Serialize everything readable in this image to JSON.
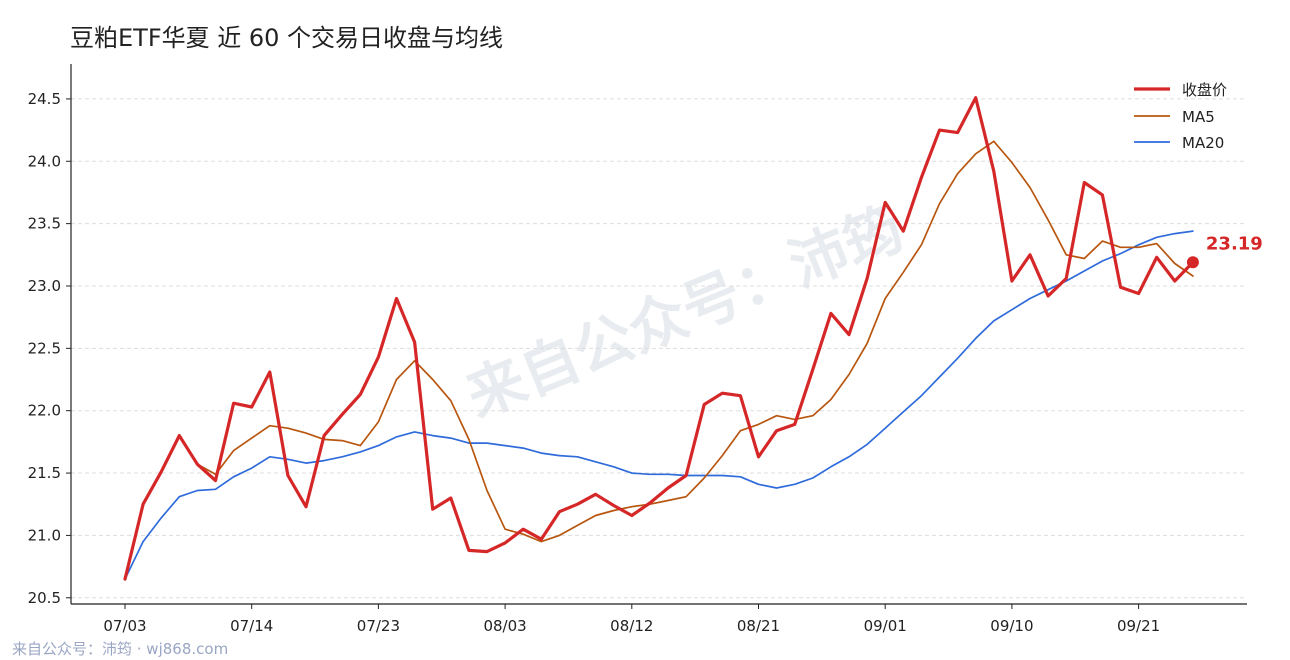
{
  "title": "豆粕ETF华夏 近 60 个交易日收盘与均线",
  "footer": "来自公众号：沛筠 · wj868.com",
  "watermark": "来自公众号：沛筠",
  "colors": {
    "close": "#d62728",
    "ma5": "#b8560f",
    "ma20": "#2f6bdb",
    "grid": "#dddddd",
    "axis": "#222222"
  },
  "chart_data": {
    "type": "line",
    "title": "豆粕ETF华夏 近 60 个交易日收盘与均线",
    "ylim": [
      20.45,
      24.78
    ],
    "yticks": [
      20.5,
      21.0,
      21.5,
      22.0,
      22.5,
      23.0,
      23.5,
      24.0,
      24.5
    ],
    "ytick_labels": [
      "20.5",
      "21.0",
      "21.5",
      "22.0",
      "22.5",
      "23.0",
      "23.5",
      "24.0",
      "24.5"
    ],
    "xtick_index": [
      0,
      7,
      14,
      21,
      28,
      35,
      42,
      49,
      56
    ],
    "xtick_labels": [
      "07/03",
      "07/14",
      "07/23",
      "08/03",
      "08/12",
      "08/21",
      "09/01",
      "09/10",
      "09/21"
    ],
    "grid": "horizontal dashed",
    "legend_position": "top-right",
    "last_value_label": "23.19",
    "series": [
      {
        "name": "收盘价",
        "values": [
          20.65,
          21.25,
          21.51,
          21.8,
          21.57,
          21.44,
          22.06,
          22.03,
          22.31,
          21.48,
          21.23,
          21.8,
          21.97,
          22.13,
          22.43,
          22.9,
          22.55,
          21.21,
          21.3,
          20.88,
          20.87,
          20.94,
          21.05,
          20.97,
          21.19,
          21.25,
          21.33,
          21.24,
          21.16,
          21.26,
          21.38,
          21.48,
          22.05,
          22.14,
          22.12,
          21.63,
          21.84,
          21.89,
          22.33,
          22.78,
          22.61,
          23.06,
          23.67,
          23.44,
          23.87,
          24.25,
          24.23,
          24.51,
          23.92,
          23.04,
          23.25,
          22.92,
          23.06,
          23.83,
          23.73,
          22.99,
          22.94,
          23.23,
          23.04,
          23.19
        ]
      },
      {
        "name": "MA5",
        "values": [
          20.65,
          21.25,
          21.51,
          21.8,
          21.57,
          21.49,
          21.68,
          21.78,
          21.88,
          21.86,
          21.82,
          21.77,
          21.76,
          21.72,
          21.91,
          22.25,
          22.4,
          22.25,
          22.08,
          21.77,
          21.36,
          21.05,
          21.01,
          20.95,
          21.0,
          21.08,
          21.16,
          21.2,
          21.23,
          21.25,
          21.28,
          21.31,
          21.46,
          21.64,
          21.84,
          21.89,
          21.96,
          21.93,
          21.96,
          22.09,
          22.29,
          22.54,
          22.9,
          23.11,
          23.33,
          23.66,
          23.9,
          24.06,
          24.16,
          23.99,
          23.79,
          23.53,
          23.25,
          23.22,
          23.36,
          23.31,
          23.31,
          23.34,
          23.18,
          23.08
        ]
      },
      {
        "name": "MA20",
        "values": [
          20.65,
          20.95,
          21.14,
          21.31,
          21.36,
          21.37,
          21.47,
          21.54,
          21.63,
          21.61,
          21.58,
          21.6,
          21.63,
          21.67,
          21.72,
          21.79,
          21.83,
          21.8,
          21.78,
          21.74,
          21.74,
          21.72,
          21.7,
          21.66,
          21.64,
          21.63,
          21.59,
          21.55,
          21.5,
          21.49,
          21.49,
          21.48,
          21.48,
          21.48,
          21.47,
          21.41,
          21.38,
          21.41,
          21.46,
          21.55,
          21.63,
          21.73,
          21.86,
          21.99,
          22.12,
          22.27,
          22.42,
          22.58,
          22.72,
          22.81,
          22.9,
          22.97,
          23.04,
          23.12,
          23.2,
          23.26,
          23.33,
          23.39,
          23.42,
          23.44
        ]
      }
    ]
  }
}
